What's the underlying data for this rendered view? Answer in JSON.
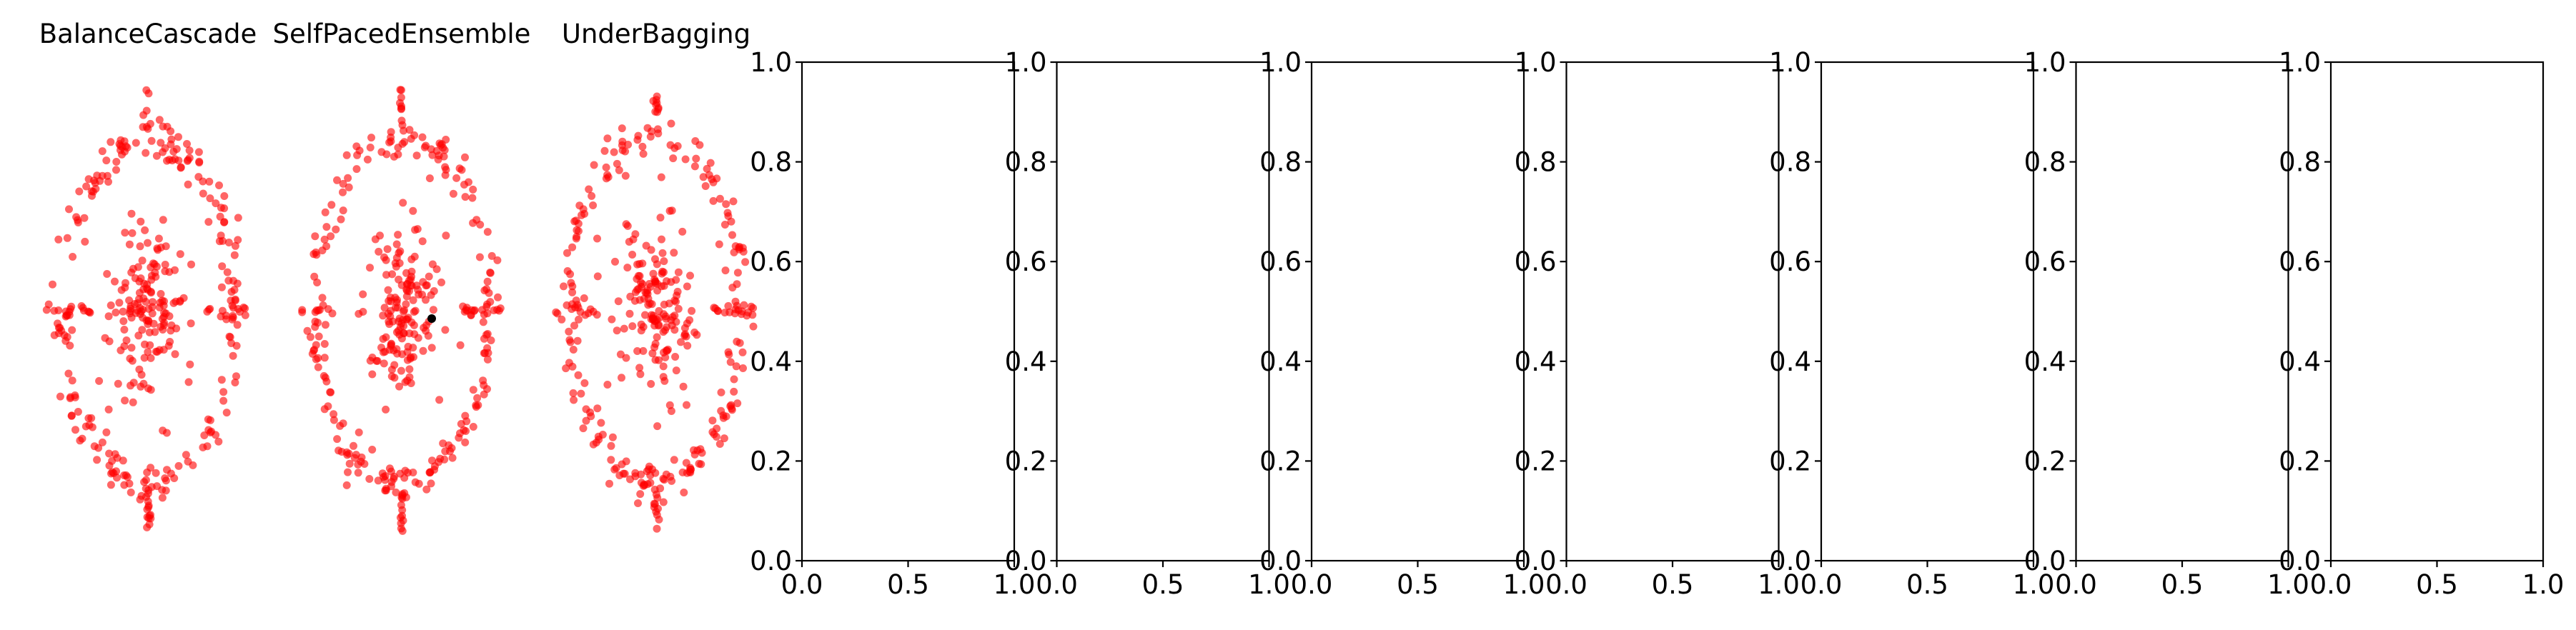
{
  "colors": {
    "points": "#ff0000",
    "highlight": "#000000",
    "axes": "#000000",
    "background": "#ffffff"
  },
  "chart_data": [
    {
      "type": "scatter",
      "title": "BalanceCascade",
      "axis": "off",
      "series": [
        {
          "color": "#ff0000"
        }
      ]
    },
    {
      "type": "scatter",
      "title": "SelfPacedEnsemble",
      "axis": "off",
      "series": [
        {
          "color": "#ff0000"
        },
        {
          "color": "#000000"
        }
      ]
    },
    {
      "type": "scatter",
      "title": "UnderBagging",
      "axis": "off",
      "series": [
        {
          "color": "#ff0000"
        }
      ]
    },
    {
      "type": "scatter",
      "title": "",
      "series": [],
      "xlim": [
        0.0,
        1.0
      ],
      "ylim": [
        0.0,
        1.0
      ],
      "xticks": [
        "0.0",
        "0.5",
        "1.0"
      ],
      "yticks": [
        "0.0",
        "0.2",
        "0.4",
        "0.6",
        "0.8",
        "1.0"
      ]
    },
    {
      "type": "scatter",
      "title": "",
      "series": [],
      "xlim": [
        0.0,
        1.0
      ],
      "ylim": [
        0.0,
        1.0
      ],
      "xticks": [
        "0.0",
        "0.5",
        "1.0"
      ],
      "yticks": [
        "0.0",
        "0.2",
        "0.4",
        "0.6",
        "0.8",
        "1.0"
      ]
    },
    {
      "type": "scatter",
      "title": "",
      "series": [],
      "xlim": [
        0.0,
        1.0
      ],
      "ylim": [
        0.0,
        1.0
      ],
      "xticks": [
        "0.0",
        "0.5",
        "1.0"
      ],
      "yticks": [
        "0.0",
        "0.2",
        "0.4",
        "0.6",
        "0.8",
        "1.0"
      ]
    },
    {
      "type": "scatter",
      "title": "",
      "series": [],
      "xlim": [
        0.0,
        1.0
      ],
      "ylim": [
        0.0,
        1.0
      ],
      "xticks": [
        "0.0",
        "0.5",
        "1.0"
      ],
      "yticks": [
        "0.0",
        "0.2",
        "0.4",
        "0.6",
        "0.8",
        "1.0"
      ]
    },
    {
      "type": "scatter",
      "title": "",
      "series": [],
      "xlim": [
        0.0,
        1.0
      ],
      "ylim": [
        0.0,
        1.0
      ],
      "xticks": [
        "0.0",
        "0.5",
        "1.0"
      ],
      "yticks": [
        "0.0",
        "0.2",
        "0.4",
        "0.6",
        "0.8",
        "1.0"
      ]
    },
    {
      "type": "scatter",
      "title": "",
      "series": [],
      "xlim": [
        0.0,
        1.0
      ],
      "ylim": [
        0.0,
        1.0
      ],
      "xticks": [
        "0.0",
        "0.5",
        "1.0"
      ],
      "yticks": [
        "0.0",
        "0.2",
        "0.4",
        "0.6",
        "0.8",
        "1.0"
      ]
    },
    {
      "type": "scatter",
      "title": "",
      "series": [],
      "xlim": [
        0.0,
        1.0
      ],
      "ylim": [
        0.0,
        1.0
      ],
      "xticks": [
        "0.0",
        "0.5",
        "1.0"
      ],
      "yticks": [
        "0.0",
        "0.2",
        "0.4",
        "0.6",
        "0.8",
        "1.0"
      ]
    }
  ]
}
